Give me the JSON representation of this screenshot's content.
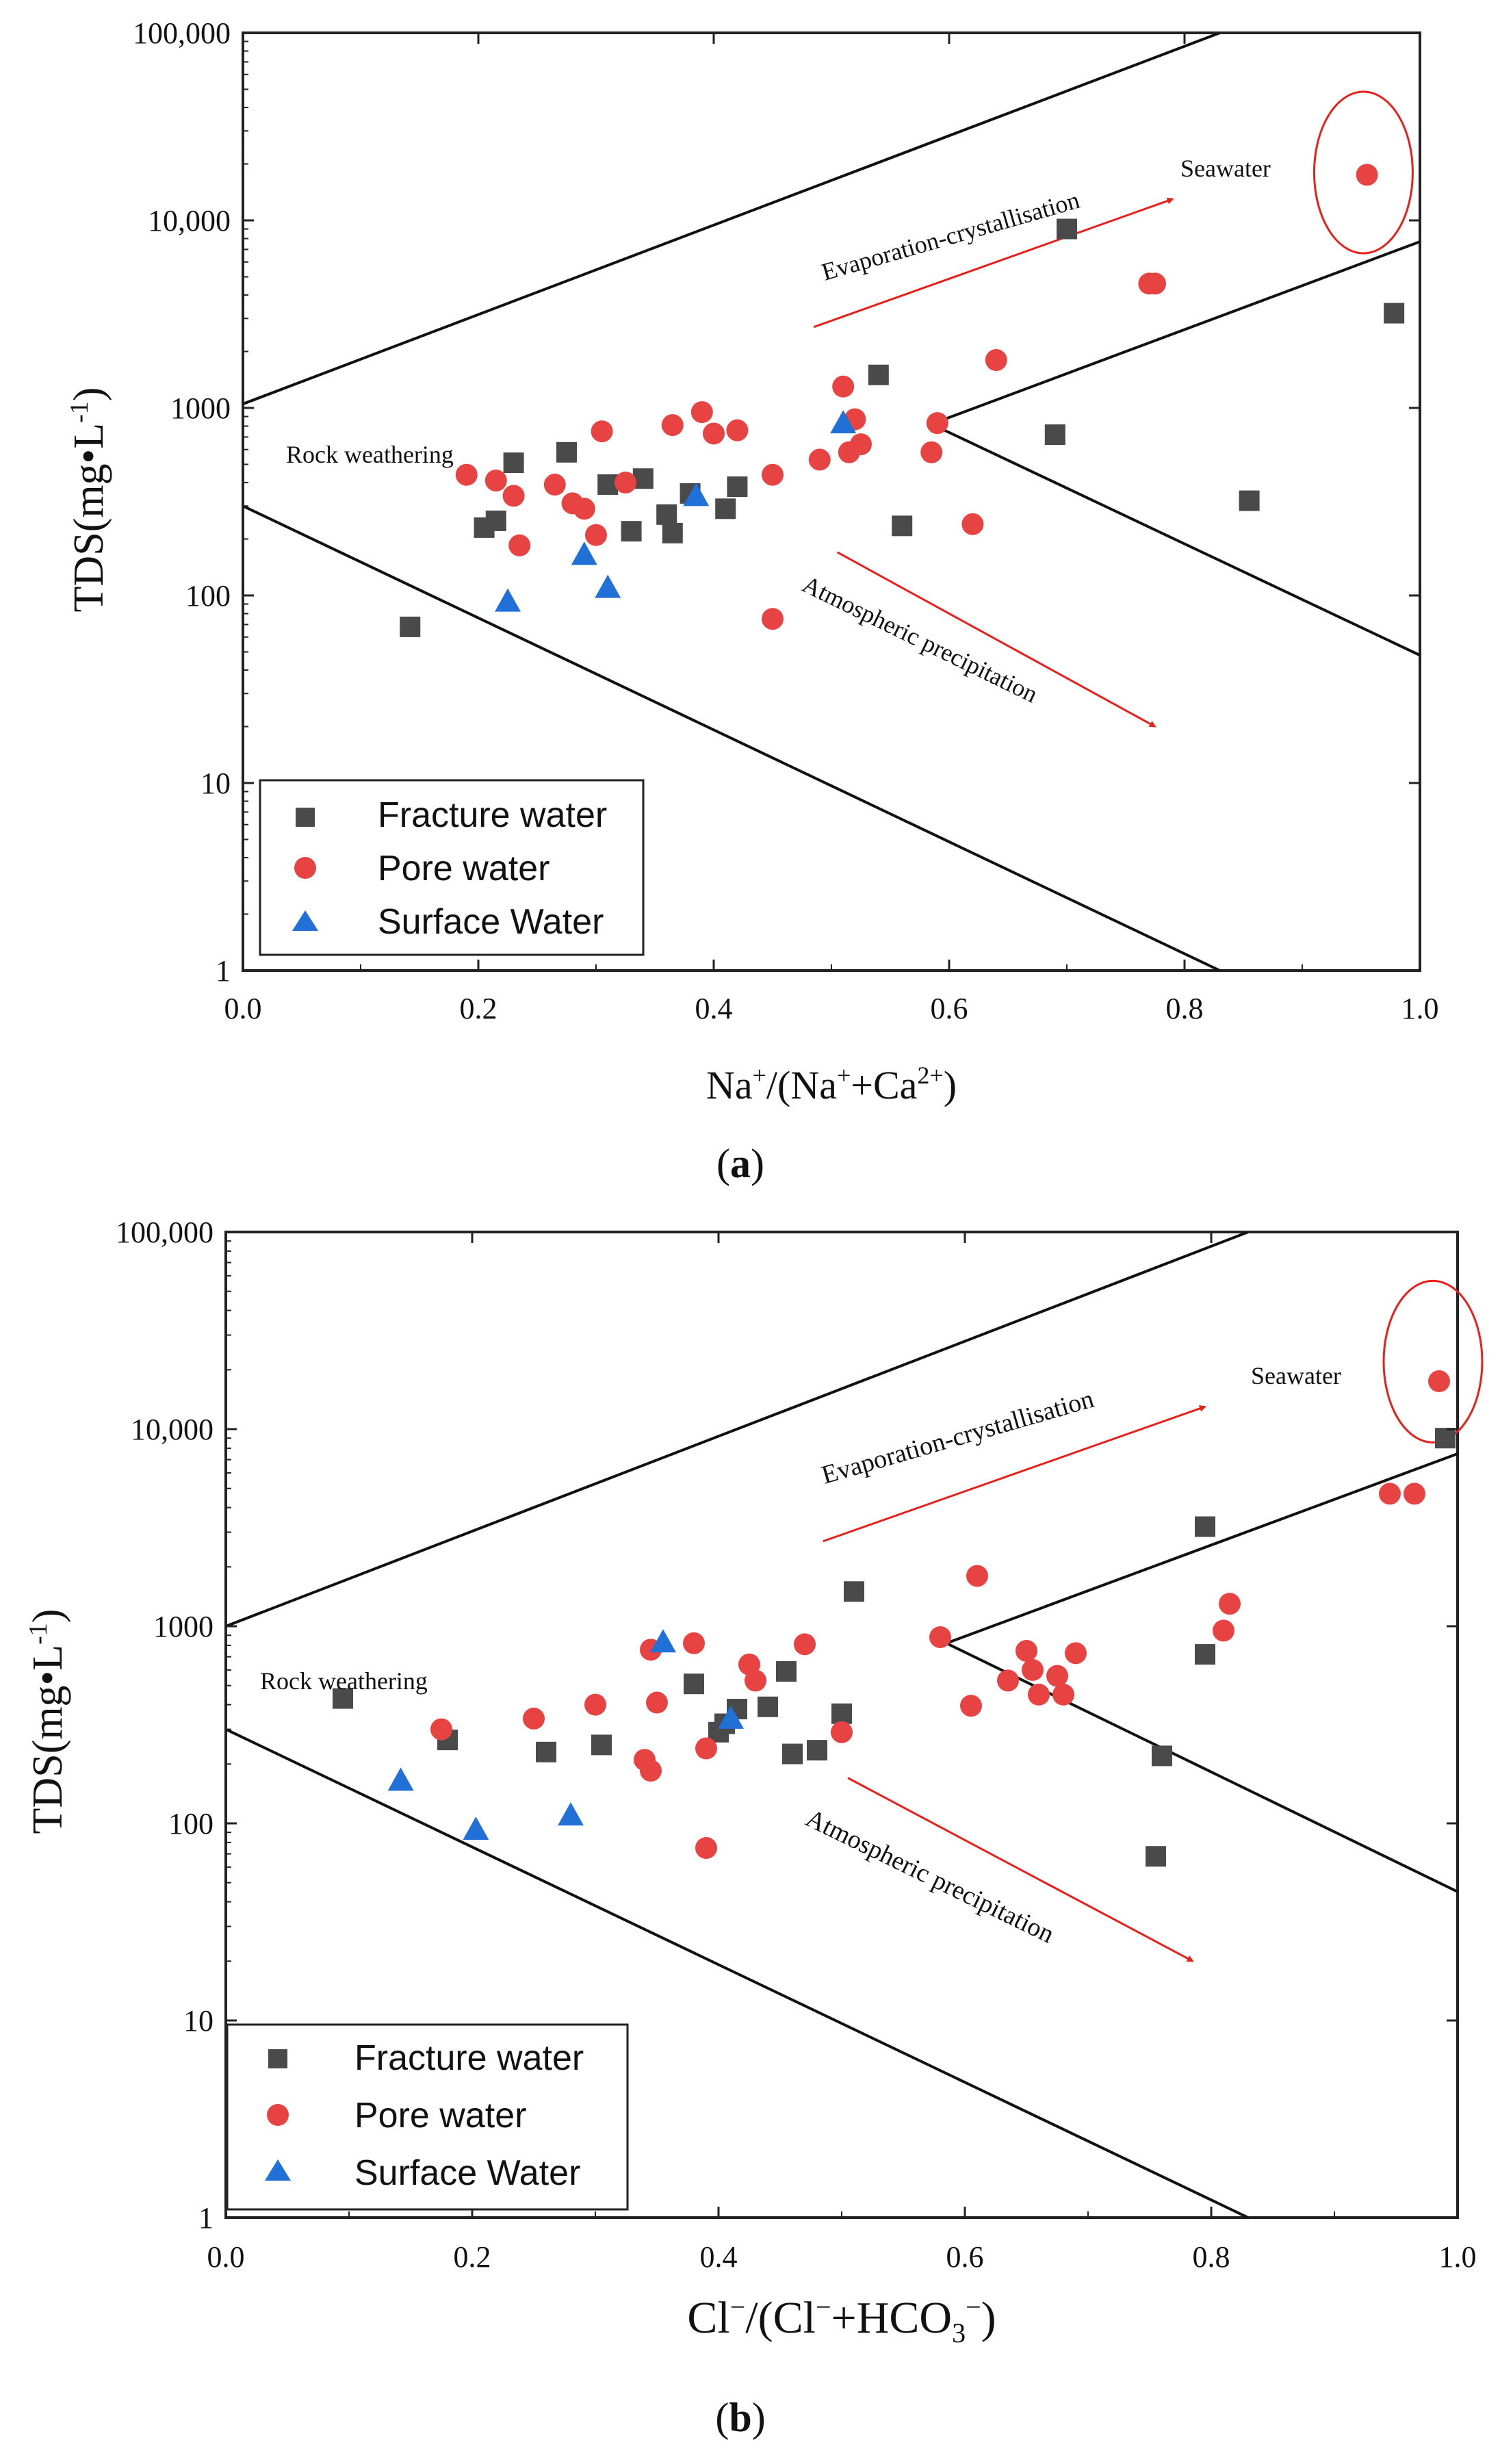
{
  "chart_data": [
    {
      "panel_id": "a",
      "panel_label": "a",
      "type": "scatter",
      "yscale": "log",
      "xlim": [
        0.0,
        1.0
      ],
      "ylim": [
        1,
        100000
      ],
      "x_ticks": [
        0.0,
        0.2,
        0.4,
        0.6,
        0.8,
        1.0
      ],
      "x_tick_labels": [
        "0.0",
        "0.2",
        "0.4",
        "0.6",
        "0.8",
        "1.0"
      ],
      "y_ticks": [
        1,
        10,
        100,
        1000,
        10000,
        100000
      ],
      "y_tick_labels": [
        "1",
        "10",
        "100",
        "1000",
        "10,000",
        "100,000"
      ],
      "xlabel": {
        "main": "Na",
        "sup1": "+",
        "mid": "/(Na",
        "sup2": "+",
        "mid2": "+Ca",
        "sup3": "2+",
        "end": ")"
      },
      "ylabel": {
        "main": "TDS(mg•L",
        "sup": "-1",
        "end": ")"
      },
      "annotations": {
        "rock": "Rock weathering",
        "evap": "Evaporation-crystallisation",
        "atmo": "Atmospheric precipitation",
        "sea": "Seawater"
      },
      "boundary_lines": [
        {
          "x1": 0.0,
          "y1": 1050,
          "x2": 0.83,
          "y2": 100000
        },
        {
          "x1": 0.0,
          "y1": 300,
          "x2": 0.83,
          "y2": 1
        },
        {
          "x1": 0.585,
          "y1": 820,
          "x2": 1.0,
          "y2": 7700
        },
        {
          "x1": 0.585,
          "y1": 820,
          "x2": 1.0,
          "y2": 48
        }
      ],
      "arrows": [
        {
          "x1": 0.485,
          "y1": 2700,
          "x2": 0.79,
          "y2": 13000
        },
        {
          "x1": 0.505,
          "y1": 170,
          "x2": 0.775,
          "y2": 20
        }
      ],
      "seawater_ellipse": {
        "cx": 0.952,
        "cy": 18000
      },
      "series": [
        {
          "name": "Fracture water",
          "marker": "square",
          "color": "#4a4a4a",
          "points": [
            [
              0.142,
              68
            ],
            [
              0.205,
              230
            ],
            [
              0.215,
              250
            ],
            [
              0.23,
              510
            ],
            [
              0.275,
              580
            ],
            [
              0.31,
              390
            ],
            [
              0.33,
              220
            ],
            [
              0.34,
              420
            ],
            [
              0.36,
              270
            ],
            [
              0.365,
              215
            ],
            [
              0.38,
              350
            ],
            [
              0.41,
              290
            ],
            [
              0.42,
              380
            ],
            [
              0.54,
              1500
            ],
            [
              0.56,
              235
            ],
            [
              0.69,
              720
            ],
            [
              0.7,
              9000
            ],
            [
              0.855,
              320
            ],
            [
              0.978,
              3200
            ]
          ]
        },
        {
          "name": "Pore water",
          "marker": "circle",
          "color": "#e84343",
          "points": [
            [
              0.19,
              440
            ],
            [
              0.215,
              410
            ],
            [
              0.23,
              340
            ],
            [
              0.235,
              185
            ],
            [
              0.265,
              390
            ],
            [
              0.28,
              310
            ],
            [
              0.29,
              290
            ],
            [
              0.3,
              210
            ],
            [
              0.305,
              750
            ],
            [
              0.325,
              400
            ],
            [
              0.365,
              810
            ],
            [
              0.39,
              950
            ],
            [
              0.4,
              730
            ],
            [
              0.42,
              760
            ],
            [
              0.45,
              75
            ],
            [
              0.45,
              440
            ],
            [
              0.49,
              530
            ],
            [
              0.51,
              1300
            ],
            [
              0.515,
              580
            ],
            [
              0.52,
              870
            ],
            [
              0.525,
              640
            ],
            [
              0.585,
              580
            ],
            [
              0.59,
              830
            ],
            [
              0.62,
              240
            ],
            [
              0.64,
              1800
            ],
            [
              0.77,
              4600
            ],
            [
              0.775,
              4600
            ],
            [
              0.955,
              17500
            ]
          ]
        },
        {
          "name": "Surface Water",
          "marker": "triangle",
          "color": "#2070d8",
          "points": [
            [
              0.225,
              93
            ],
            [
              0.29,
              165
            ],
            [
              0.31,
              110
            ],
            [
              0.385,
              340
            ],
            [
              0.51,
              830
            ]
          ]
        }
      ]
    },
    {
      "panel_id": "b",
      "panel_label": "b",
      "type": "scatter",
      "yscale": "log",
      "xlim": [
        0.0,
        1.0
      ],
      "ylim": [
        1,
        100000
      ],
      "x_ticks": [
        0.0,
        0.2,
        0.4,
        0.6,
        0.8,
        1.0
      ],
      "x_tick_labels": [
        "0.0",
        "0.2",
        "0.4",
        "0.6",
        "0.8",
        "1.0"
      ],
      "y_ticks": [
        1,
        10,
        100,
        1000,
        10000,
        100000
      ],
      "y_tick_labels": [
        "1",
        "10",
        "100",
        "1000",
        "10,000",
        "100,000"
      ],
      "xlabel": {
        "main": "Cl",
        "sup1": "−",
        "mid": "/(Cl",
        "sup2": "−",
        "mid2": "+HCO",
        "sub": "3",
        "sup3": "−",
        "end": ")"
      },
      "ylabel": {
        "main": "TDS(mg•L",
        "sup": "-1",
        "end": ")"
      },
      "annotations": {
        "rock": "Rock weathering",
        "evap": "Evaporation-crystallisation",
        "atmo": "Atmospheric precipitation",
        "sea": "Seawater"
      },
      "boundary_lines": [
        {
          "x1": 0.0,
          "y1": 1000,
          "x2": 0.83,
          "y2": 100000
        },
        {
          "x1": 0.0,
          "y1": 300,
          "x2": 0.83,
          "y2": 1
        },
        {
          "x1": 0.585,
          "y1": 820,
          "x2": 1.0,
          "y2": 7500
        },
        {
          "x1": 0.585,
          "y1": 820,
          "x2": 1.0,
          "y2": 45
        }
      ],
      "arrows": [
        {
          "x1": 0.485,
          "y1": 2700,
          "x2": 0.795,
          "y2": 13000
        },
        {
          "x1": 0.505,
          "y1": 170,
          "x2": 0.785,
          "y2": 20
        }
      ],
      "seawater_ellipse": {
        "cx": 0.98,
        "cy": 22000
      },
      "series": [
        {
          "name": "Fracture water",
          "marker": "square",
          "color": "#4a4a4a",
          "points": [
            [
              0.095,
              430
            ],
            [
              0.18,
              265
            ],
            [
              0.26,
              230
            ],
            [
              0.305,
              250
            ],
            [
              0.38,
              510
            ],
            [
              0.4,
              290
            ],
            [
              0.405,
              320
            ],
            [
              0.415,
              380
            ],
            [
              0.44,
              390
            ],
            [
              0.455,
              590
            ],
            [
              0.46,
              225
            ],
            [
              0.48,
              235
            ],
            [
              0.5,
              360
            ],
            [
              0.51,
              1500
            ],
            [
              0.755,
              68
            ],
            [
              0.76,
              220
            ],
            [
              0.795,
              720
            ],
            [
              0.795,
              3200
            ],
            [
              0.99,
              9000
            ]
          ]
        },
        {
          "name": "Pore water",
          "marker": "circle",
          "color": "#e84343",
          "points": [
            [
              0.175,
              300
            ],
            [
              0.25,
              340
            ],
            [
              0.3,
              400
            ],
            [
              0.34,
              210
            ],
            [
              0.345,
              185
            ],
            [
              0.345,
              760
            ],
            [
              0.35,
              410
            ],
            [
              0.38,
              820
            ],
            [
              0.39,
              240
            ],
            [
              0.39,
              75
            ],
            [
              0.425,
              640
            ],
            [
              0.43,
              530
            ],
            [
              0.47,
              810
            ],
            [
              0.5,
              290
            ],
            [
              0.58,
              880
            ],
            [
              0.605,
              395
            ],
            [
              0.61,
              1800
            ],
            [
              0.635,
              530
            ],
            [
              0.65,
              750
            ],
            [
              0.655,
              600
            ],
            [
              0.66,
              450
            ],
            [
              0.675,
              560
            ],
            [
              0.68,
              450
            ],
            [
              0.69,
              730
            ],
            [
              0.81,
              950
            ],
            [
              0.815,
              1300
            ],
            [
              0.945,
              4700
            ],
            [
              0.965,
              4700
            ],
            [
              0.985,
              17500
            ]
          ]
        },
        {
          "name": "Surface Water",
          "marker": "triangle",
          "color": "#2070d8",
          "points": [
            [
              0.142,
              165
            ],
            [
              0.203,
              93
            ],
            [
              0.28,
              110
            ],
            [
              0.355,
              830
            ],
            [
              0.41,
              340
            ]
          ]
        }
      ]
    }
  ]
}
